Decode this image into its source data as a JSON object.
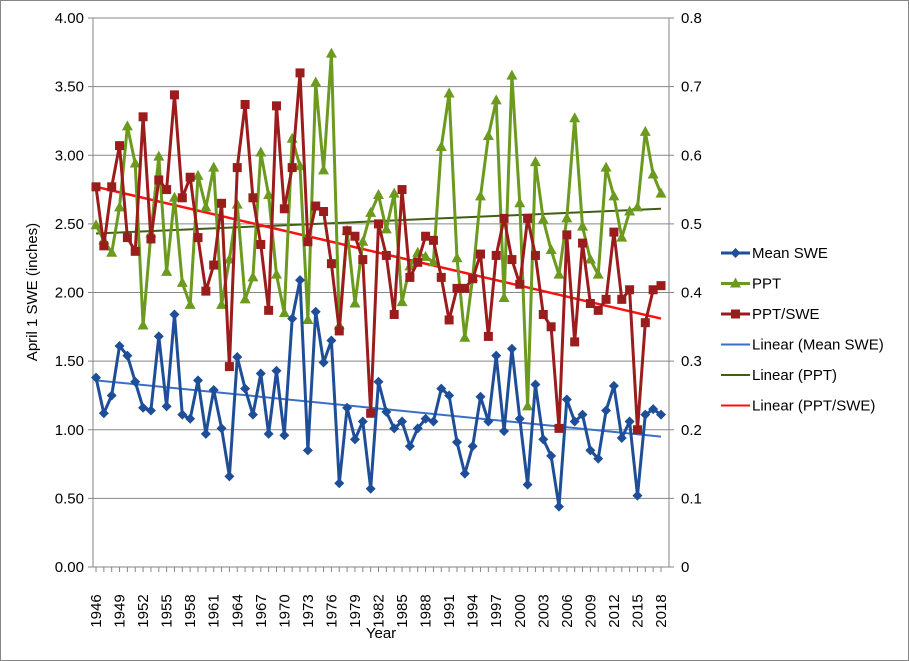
{
  "chart_data": {
    "type": "line",
    "title": "",
    "xlabel": "Year",
    "ylabel": "April 1 SWE (inches)",
    "ylim": [
      0,
      4
    ],
    "y2lim": [
      0,
      0.8
    ],
    "grid": true,
    "legend_position": "right",
    "y_ticks": [
      "0.00",
      "0.50",
      "1.00",
      "1.50",
      "2.00",
      "2.50",
      "3.00",
      "3.50",
      "4.00"
    ],
    "y2_ticks": [
      "0",
      "0.1",
      "0.2",
      "0.3",
      "0.4",
      "0.5",
      "0.6",
      "0.7",
      "0.8"
    ],
    "x_tick_labels": [
      "1946",
      "1949",
      "1952",
      "1955",
      "1958",
      "1961",
      "1964",
      "1967",
      "1970",
      "1973",
      "1976",
      "1979",
      "1982",
      "1985",
      "1988",
      "1991",
      "1994",
      "1997",
      "2000",
      "2003",
      "2006",
      "2009",
      "2012",
      "2015",
      "2018"
    ],
    "x": [
      1946,
      1947,
      1948,
      1949,
      1950,
      1951,
      1952,
      1953,
      1954,
      1955,
      1956,
      1957,
      1958,
      1959,
      1960,
      1961,
      1962,
      1963,
      1964,
      1965,
      1966,
      1967,
      1968,
      1969,
      1970,
      1971,
      1972,
      1973,
      1974,
      1975,
      1976,
      1977,
      1978,
      1979,
      1980,
      1981,
      1982,
      1983,
      1984,
      1985,
      1986,
      1987,
      1988,
      1989,
      1990,
      1991,
      1992,
      1993,
      1994,
      1995,
      1996,
      1997,
      1998,
      1999,
      2000,
      2001,
      2002,
      2003,
      2004,
      2005,
      2006,
      2007,
      2008,
      2009,
      2010,
      2011,
      2012,
      2013,
      2014,
      2015,
      2016,
      2017,
      2018
    ],
    "series": [
      {
        "name": "Mean SWE",
        "color": "#1F4E99",
        "marker": "diamond",
        "values": [
          1.38,
          1.12,
          1.25,
          1.61,
          1.54,
          1.35,
          1.16,
          1.14,
          1.68,
          1.17,
          1.84,
          1.11,
          1.08,
          1.36,
          0.97,
          1.29,
          1.01,
          0.66,
          1.53,
          1.3,
          1.11,
          1.41,
          0.97,
          1.43,
          0.96,
          1.81,
          2.09,
          0.85,
          1.86,
          1.49,
          1.65,
          0.61,
          1.16,
          0.93,
          1.06,
          0.57,
          1.35,
          1.13,
          1.01,
          1.06,
          0.88,
          1.01,
          1.08,
          1.06,
          1.3,
          1.25,
          0.91,
          0.68,
          0.88,
          1.24,
          1.06,
          1.54,
          0.99,
          1.59,
          1.08,
          0.6,
          1.33,
          0.93,
          0.81,
          0.44,
          1.22,
          1.06,
          1.11,
          0.85,
          0.79,
          1.14,
          1.32,
          0.94,
          1.06,
          0.52,
          1.11,
          1.15,
          1.11
        ]
      },
      {
        "name": "PPT",
        "color": "#6B9A1F",
        "marker": "triangle",
        "values": [
          2.49,
          2.38,
          2.29,
          2.62,
          3.21,
          2.94,
          1.76,
          2.43,
          2.99,
          2.15,
          2.69,
          2.07,
          1.91,
          2.85,
          2.62,
          2.91,
          1.91,
          2.24,
          2.64,
          1.95,
          2.11,
          3.02,
          2.71,
          2.13,
          1.85,
          3.12,
          2.92,
          1.8,
          3.53,
          2.89,
          3.74,
          1.76,
          2.45,
          1.92,
          2.37,
          2.58,
          2.71,
          2.46,
          2.72,
          1.93,
          2.19,
          2.29,
          2.26,
          2.22,
          3.06,
          3.45,
          2.25,
          1.67,
          2.11,
          2.7,
          3.14,
          3.4,
          1.96,
          3.58,
          2.65,
          1.17,
          2.95,
          2.53,
          2.31,
          2.13,
          2.54,
          3.27,
          2.48,
          2.24,
          2.13,
          2.91,
          2.7,
          2.4,
          2.59,
          2.62,
          3.17,
          2.86,
          2.72
        ]
      },
      {
        "name": "PPT/SWE",
        "color": "#9B1C1C",
        "marker": "square",
        "values": [
          2.77,
          2.34,
          2.77,
          3.07,
          2.4,
          2.3,
          3.28,
          2.39,
          2.82,
          2.75,
          3.44,
          2.69,
          2.84,
          2.4,
          2.01,
          2.2,
          2.65,
          1.46,
          2.91,
          3.37,
          2.69,
          2.35,
          1.87,
          3.36,
          2.61,
          2.91,
          3.6,
          2.37,
          2.63,
          2.59,
          2.21,
          1.72,
          2.45,
          2.41,
          2.24,
          1.12,
          2.5,
          2.27,
          1.84,
          2.75,
          2.11,
          2.22,
          2.41,
          2.38,
          2.11,
          1.8,
          2.03,
          2.03,
          2.1,
          2.28,
          1.68,
          2.27,
          2.54,
          2.24,
          2.06,
          2.54,
          2.27,
          1.84,
          1.75,
          1.01,
          2.42,
          1.64,
          2.36,
          1.92,
          1.87,
          1.95,
          2.44,
          1.95,
          2.02,
          1.0,
          1.78,
          2.02,
          2.05
        ]
      }
    ],
    "trendlines": [
      {
        "name": "Linear (Mean SWE)",
        "color": "#3A6FC4",
        "start": [
          1946,
          1.36
        ],
        "end": [
          2018,
          0.95
        ]
      },
      {
        "name": "Linear (PPT)",
        "color": "#3F5F15",
        "start": [
          1946,
          2.43
        ],
        "end": [
          2018,
          2.61
        ]
      },
      {
        "name": "Linear (PPT/SWE)",
        "color": "#FF1010",
        "start": [
          1946,
          2.77
        ],
        "end": [
          2018,
          1.81
        ]
      }
    ]
  }
}
